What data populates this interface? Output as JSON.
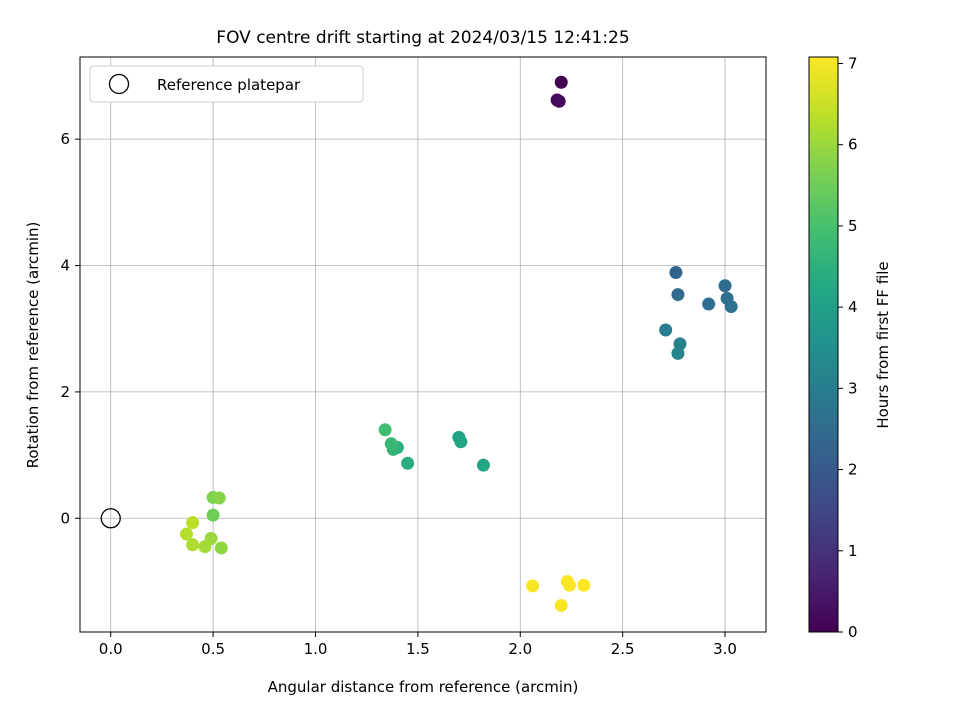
{
  "chart_data": {
    "type": "scatter",
    "title": "FOV centre drift starting at 2024/03/15 12:41:25",
    "xlabel": "Angular distance from reference (arcmin)",
    "ylabel": "Rotation from reference (arcmin)",
    "xlim": [
      -0.15,
      3.2
    ],
    "ylim": [
      -1.8,
      7.3
    ],
    "x_ticks": [
      0.0,
      0.5,
      1.0,
      1.5,
      2.0,
      2.5,
      3.0
    ],
    "x_tick_labels": [
      "0.0",
      "0.5",
      "1.0",
      "1.5",
      "2.0",
      "2.5",
      "3.0"
    ],
    "y_ticks": [
      0,
      2,
      4,
      6
    ],
    "y_tick_labels": [
      "0",
      "2",
      "4",
      "6"
    ],
    "grid": true,
    "legend": {
      "placement": "upper-left",
      "entries": [
        "Reference platepar"
      ]
    },
    "reference_point": {
      "x": 0.0,
      "y": 0.0
    },
    "colorbar": {
      "label": "Hours from first FF file",
      "colormap": "viridis",
      "range": [
        0,
        7.08
      ],
      "ticks": [
        0,
        1,
        2,
        3,
        4,
        5,
        6,
        7
      ],
      "tick_labels": [
        "0",
        "1",
        "2",
        "3",
        "4",
        "5",
        "6",
        "7"
      ]
    },
    "points": [
      {
        "x": 2.2,
        "y": 6.9,
        "hours": 0.0
      },
      {
        "x": 2.18,
        "y": 6.62,
        "hours": 0.1
      },
      {
        "x": 2.19,
        "y": 6.6,
        "hours": 0.2
      },
      {
        "x": 2.76,
        "y": 3.89,
        "hours": 2.3
      },
      {
        "x": 2.77,
        "y": 3.54,
        "hours": 2.4
      },
      {
        "x": 3.0,
        "y": 3.68,
        "hours": 2.5
      },
      {
        "x": 2.92,
        "y": 3.39,
        "hours": 2.55
      },
      {
        "x": 3.01,
        "y": 3.48,
        "hours": 2.6
      },
      {
        "x": 3.03,
        "y": 3.35,
        "hours": 2.65
      },
      {
        "x": 2.71,
        "y": 2.98,
        "hours": 3.0
      },
      {
        "x": 2.78,
        "y": 2.76,
        "hours": 3.1
      },
      {
        "x": 2.77,
        "y": 2.61,
        "hours": 3.2
      },
      {
        "x": 1.7,
        "y": 1.28,
        "hours": 4.1
      },
      {
        "x": 1.71,
        "y": 1.21,
        "hours": 4.15
      },
      {
        "x": 1.82,
        "y": 0.84,
        "hours": 4.2
      },
      {
        "x": 1.45,
        "y": 0.87,
        "hours": 4.4
      },
      {
        "x": 1.4,
        "y": 1.12,
        "hours": 4.5
      },
      {
        "x": 1.38,
        "y": 1.09,
        "hours": 4.6
      },
      {
        "x": 1.37,
        "y": 1.18,
        "hours": 4.7
      },
      {
        "x": 1.34,
        "y": 1.4,
        "hours": 4.9
      },
      {
        "x": 0.5,
        "y": 0.05,
        "hours": 5.5
      },
      {
        "x": 0.5,
        "y": 0.33,
        "hours": 5.7
      },
      {
        "x": 0.53,
        "y": 0.32,
        "hours": 5.8
      },
      {
        "x": 0.54,
        "y": -0.47,
        "hours": 5.9
      },
      {
        "x": 0.49,
        "y": -0.32,
        "hours": 6.0
      },
      {
        "x": 0.46,
        "y": -0.45,
        "hours": 6.1
      },
      {
        "x": 0.4,
        "y": -0.42,
        "hours": 6.2
      },
      {
        "x": 0.37,
        "y": -0.25,
        "hours": 6.3
      },
      {
        "x": 0.4,
        "y": -0.07,
        "hours": 6.35
      },
      {
        "x": 2.06,
        "y": -1.07,
        "hours": 7.0
      },
      {
        "x": 2.2,
        "y": -1.38,
        "hours": 7.02
      },
      {
        "x": 2.23,
        "y": -1.0,
        "hours": 7.03
      },
      {
        "x": 2.24,
        "y": -1.06,
        "hours": 7.05
      },
      {
        "x": 2.31,
        "y": -1.06,
        "hours": 7.08
      }
    ]
  }
}
